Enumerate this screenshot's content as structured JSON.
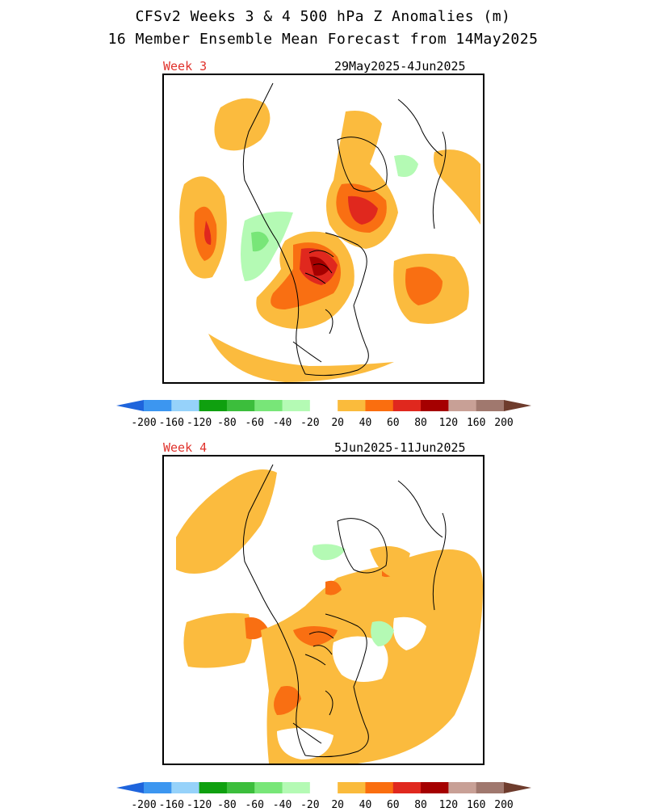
{
  "title_line1": "CFSv2 Weeks 3 & 4 500 hPa Z Anomalies (m)",
  "title_line2": "16 Member Ensemble Mean Forecast from 14May2025",
  "panels": [
    {
      "label": "Week 3",
      "date_range": "29May2025-4Jun2025",
      "label_color": "#e0322c"
    },
    {
      "label": "Week 4",
      "date_range": "5Jun2025-11Jun2025",
      "label_color": "#e0322c"
    }
  ],
  "colorbar": {
    "ticks": [
      "-200",
      "-160",
      "-120",
      "-80",
      "-60",
      "-40",
      "-20",
      "20",
      "40",
      "60",
      "80",
      "120",
      "160",
      "200"
    ],
    "colors": [
      "#1e64dc",
      "#3c96f0",
      "#96d2fa",
      "#0fa00f",
      "#3cbe3c",
      "#78e678",
      "#b4fab4",
      "#ffffff",
      "#fabb3c",
      "#fa6e0f",
      "#e0281e",
      "#a50000",
      "#c8a096",
      "#a0786e",
      "#6e3c2d"
    ],
    "units": "m"
  },
  "legend_palette": {
    "positive_20": "#fbbb3e",
    "positive_40": "#f96f12",
    "positive_60": "#e0281e",
    "positive_80": "#a50000",
    "negative_20": "#b4fab4",
    "negative_40": "#78e678"
  }
}
